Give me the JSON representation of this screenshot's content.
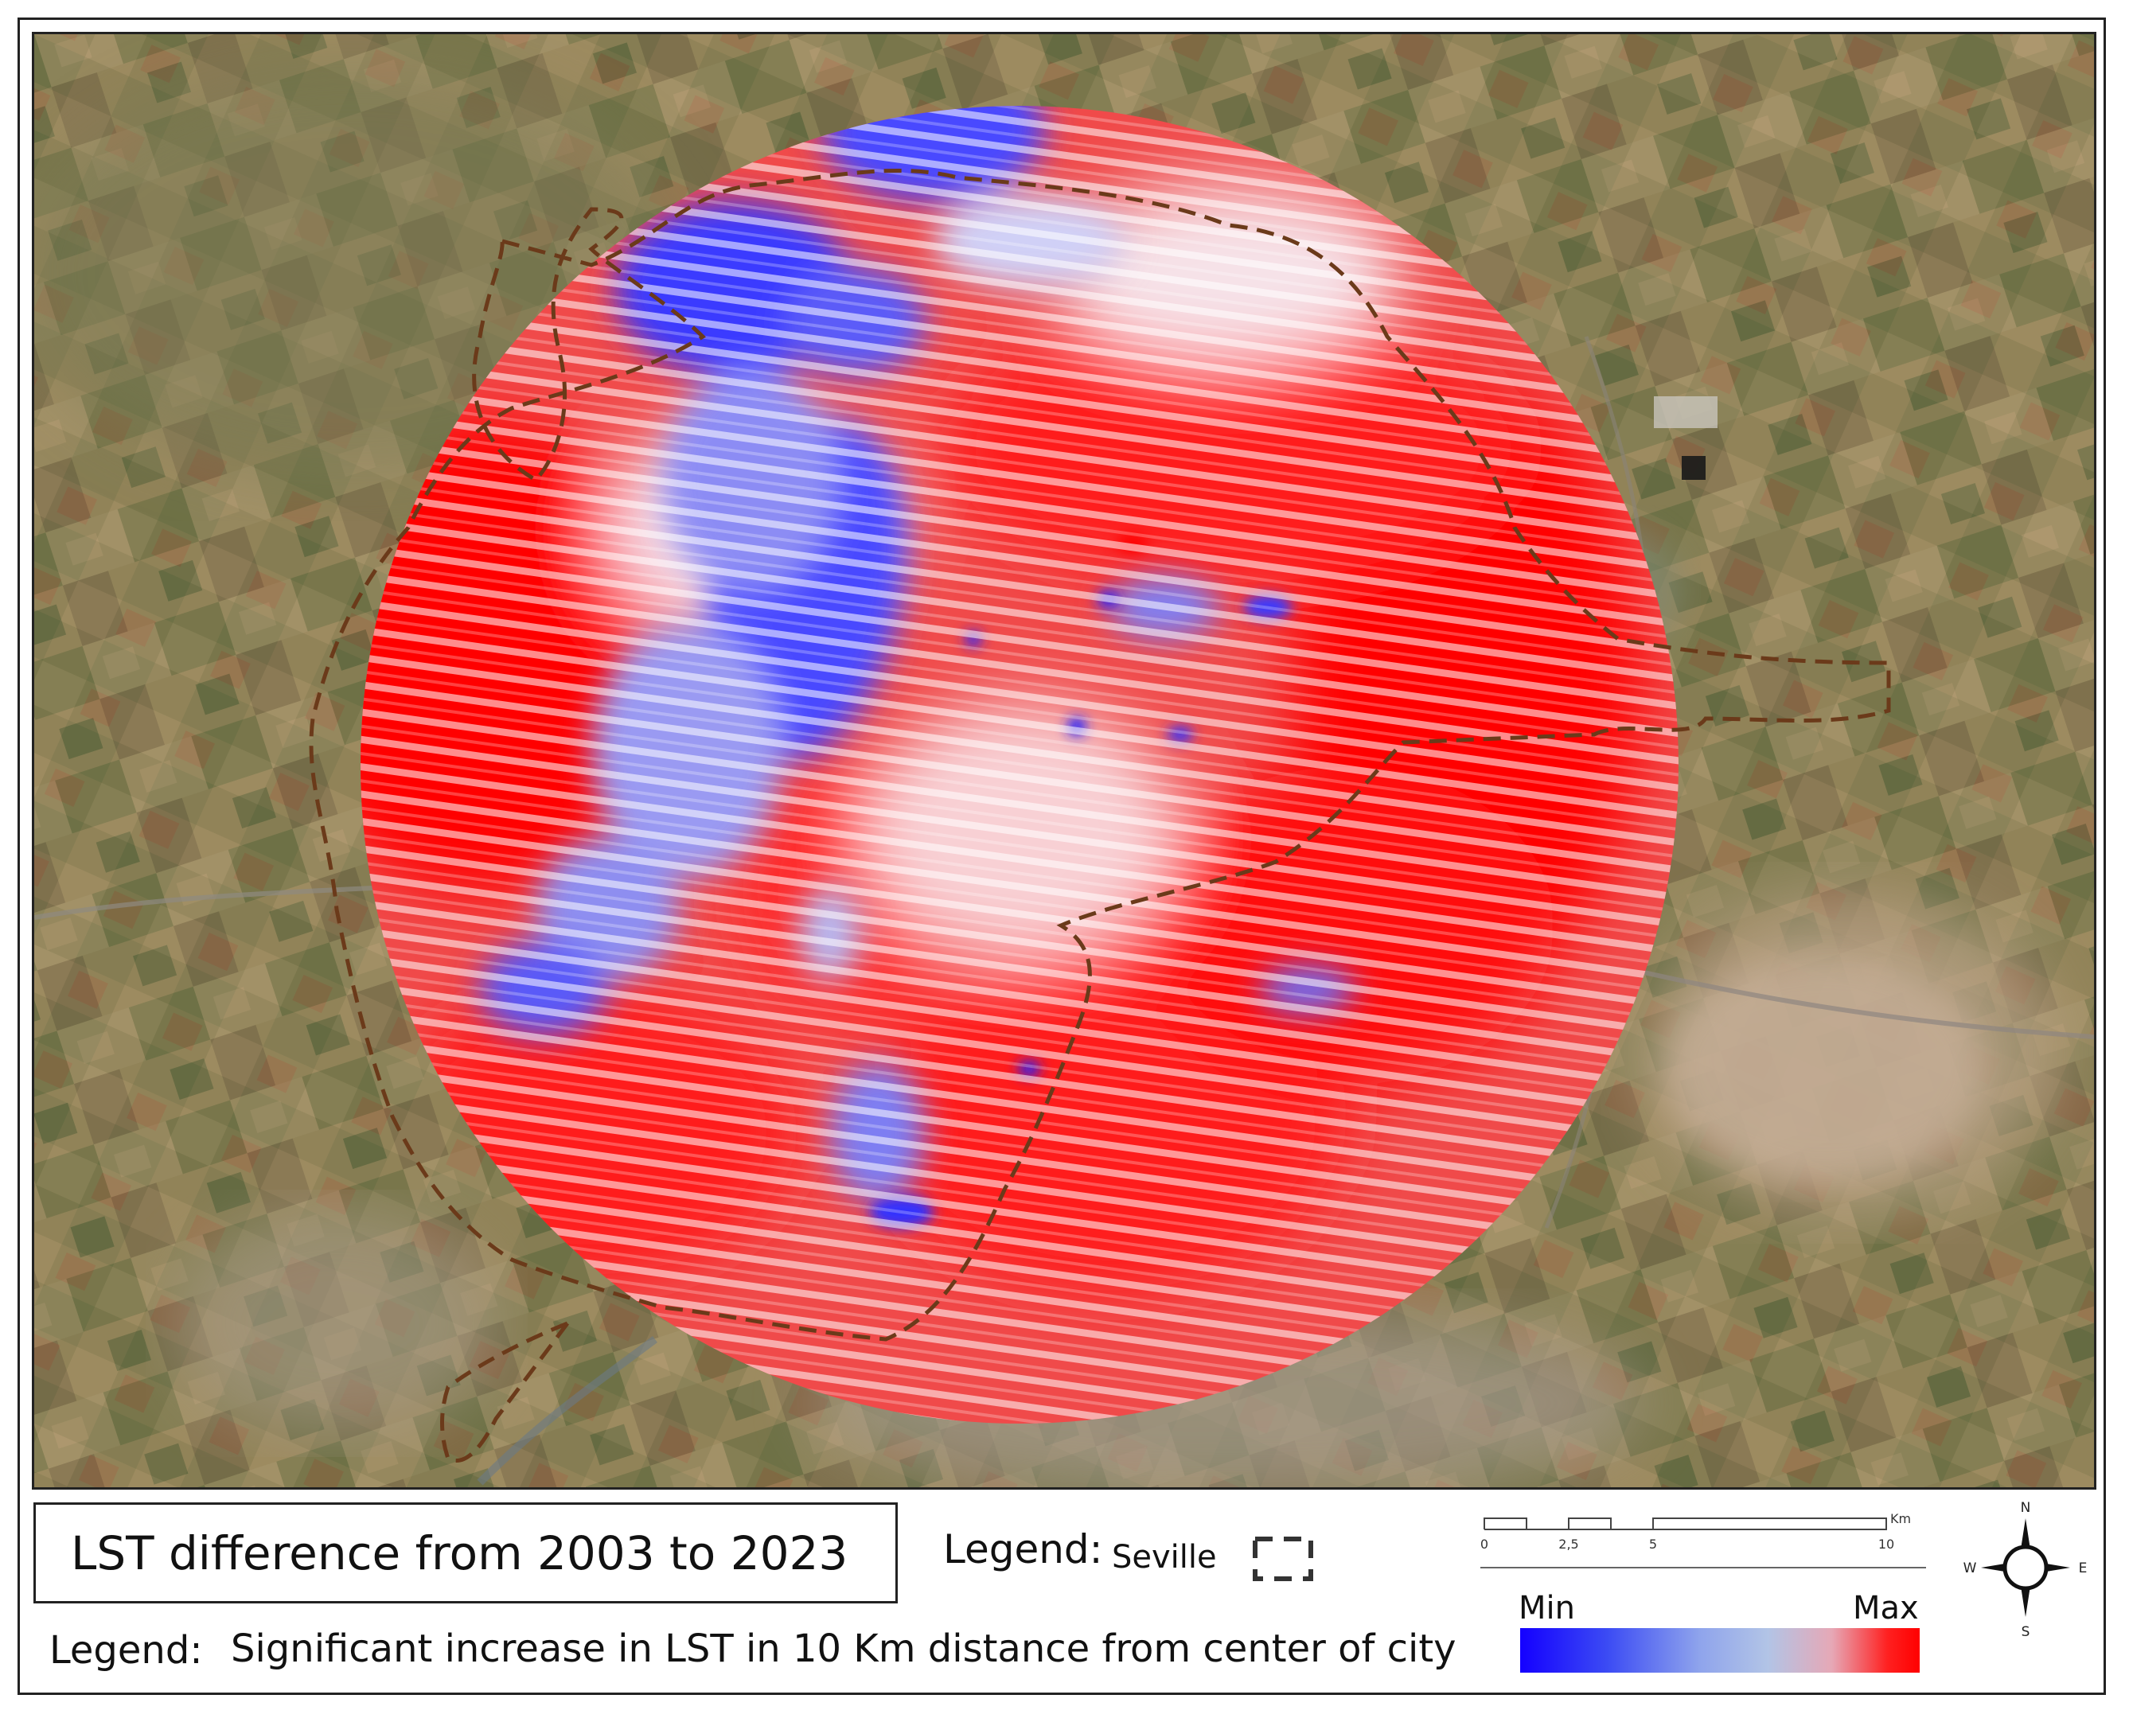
{
  "title": "LST difference from 2003 to 2023",
  "legend_top": {
    "label": "Legend:",
    "item_label": "Seville"
  },
  "legend_bottom": {
    "label": "Legend:",
    "text": "Significant increase in LST in 10 Km distance from center of city"
  },
  "scale_bar": {
    "ticks": [
      "0",
      "2,5",
      "5",
      "10"
    ],
    "unit": "Km"
  },
  "color_ramp": {
    "min_label": "Min",
    "max_label": "Max",
    "colors": [
      "#1400ff",
      "#8fa4ec",
      "#ff0000"
    ]
  },
  "compass": {
    "n": "N",
    "s": "S",
    "e": "E",
    "w": "W"
  },
  "colors": {
    "boundary": "#6b3a1a",
    "increase": "#ff0000",
    "decrease": "#2a2aff"
  }
}
